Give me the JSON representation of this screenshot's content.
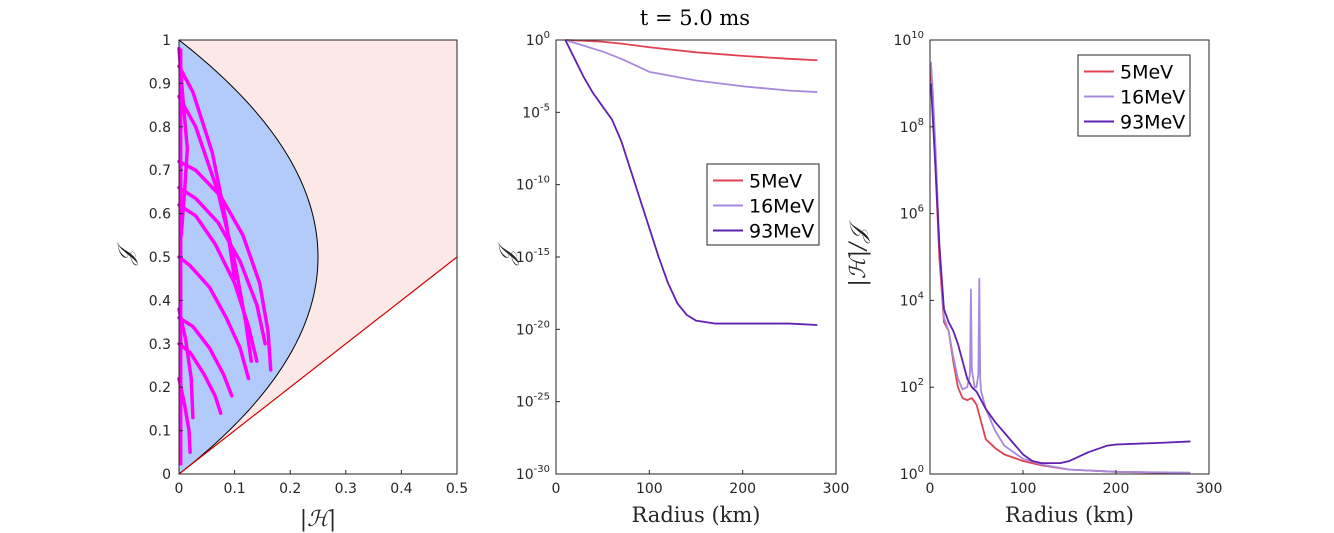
{
  "figure_title": "t = 5.0 ms",
  "colors": {
    "red_line": "#e0434f",
    "lavender_line": "#a989e0",
    "purple_line": "#6020b0",
    "magenta": "#ff00ff",
    "blue_fill": "#b2cbfa",
    "pink_fill": "#fde8e8",
    "boundary_red": "#d00000"
  },
  "chart_data": [
    {
      "type": "line",
      "panel": "left",
      "xlabel": "|ℋ|",
      "ylabel": "𝒥",
      "xlim": [
        0,
        0.5
      ],
      "ylim": [
        0,
        1
      ],
      "xticks": [
        "0",
        "0.1",
        "0.2",
        "0.3",
        "0.4",
        "0.5"
      ],
      "yticks": [
        "0",
        "0.1",
        "0.2",
        "0.3",
        "0.4",
        "0.5",
        "0.6",
        "0.7",
        "0.8",
        "0.9",
        "1"
      ],
      "regions": [
        {
          "name": "inner",
          "color": "#b2cbfa",
          "boundary": "|H| = J(1-J)"
        },
        {
          "name": "outer",
          "color": "#fde8e8",
          "boundary": "J = |H|"
        }
      ],
      "parabola_vertex": [
        0.25,
        0.5
      ],
      "diagonal_line": {
        "x": [
          0,
          0.5
        ],
        "y": [
          0,
          0.5
        ]
      },
      "trajectories": [
        {
          "x": [
            0,
            0.03,
            0.075,
            0.115,
            0.145,
            0.16,
            0.165
          ],
          "y": [
            0.72,
            0.7,
            0.64,
            0.55,
            0.44,
            0.33,
            0.24
          ]
        },
        {
          "x": [
            0,
            0.03,
            0.07,
            0.11,
            0.14,
            0.155
          ],
          "y": [
            0.66,
            0.635,
            0.58,
            0.49,
            0.39,
            0.3
          ]
        },
        {
          "x": [
            0,
            0.03,
            0.065,
            0.1,
            0.125,
            0.14
          ],
          "y": [
            0.62,
            0.595,
            0.53,
            0.44,
            0.34,
            0.26
          ]
        },
        {
          "x": [
            0,
            0.025,
            0.06,
            0.085,
            0.1
          ],
          "y": [
            0.94,
            0.88,
            0.74,
            0.58,
            0.45
          ]
        },
        {
          "x": [
            0,
            0.03,
            0.07,
            0.1,
            0.12,
            0.13
          ],
          "y": [
            0.87,
            0.8,
            0.65,
            0.49,
            0.35,
            0.26
          ]
        },
        {
          "x": [
            0,
            0.02,
            0.055,
            0.085,
            0.11,
            0.125
          ],
          "y": [
            0.5,
            0.48,
            0.43,
            0.36,
            0.29,
            0.22
          ]
        },
        {
          "x": [
            0,
            0.025,
            0.055,
            0.08,
            0.095
          ],
          "y": [
            0.36,
            0.34,
            0.29,
            0.23,
            0.18
          ]
        },
        {
          "x": [
            0,
            0.02,
            0.045,
            0.065,
            0.075
          ],
          "y": [
            0.3,
            0.28,
            0.23,
            0.18,
            0.14
          ]
        },
        {
          "x": [
            0,
            0.008,
            0.015,
            0.01,
            0.004
          ],
          "y": [
            0.98,
            0.85,
            0.75,
            0.65,
            0.55
          ]
        },
        {
          "x": [
            0,
            0.012,
            0.022,
            0.025
          ],
          "y": [
            0.38,
            0.31,
            0.22,
            0.13
          ]
        },
        {
          "x": [
            0,
            0.01,
            0.018,
            0.02
          ],
          "y": [
            0.22,
            0.16,
            0.1,
            0.05
          ]
        }
      ]
    },
    {
      "type": "line",
      "panel": "middle",
      "title": "t = 5.0 ms",
      "xlabel": "Radius (km)",
      "ylabel": "𝒥",
      "yscale": "log",
      "xlim": [
        0,
        300
      ],
      "ylim_exp": [
        -30,
        0
      ],
      "xticks": [
        "0",
        "100",
        "200",
        "300"
      ],
      "yticks": [
        "10^0",
        "10^-5",
        "10^-10",
        "10^-15",
        "10^-20",
        "10^-25",
        "10^-30"
      ],
      "legend_position": "center-right",
      "series": [
        {
          "name": "5MeV",
          "color": "#e0434f",
          "x": [
            10,
            30,
            50,
            70,
            100,
            150,
            200,
            250,
            280
          ],
          "log10y": [
            0,
            -0.05,
            -0.12,
            -0.25,
            -0.5,
            -0.85,
            -1.1,
            -1.3,
            -1.4
          ]
        },
        {
          "name": "16MeV",
          "color": "#a989e0",
          "x": [
            10,
            30,
            50,
            70,
            100,
            150,
            200,
            250,
            280
          ],
          "log10y": [
            0,
            -0.4,
            -0.8,
            -1.3,
            -2.2,
            -2.8,
            -3.2,
            -3.5,
            -3.6
          ]
        },
        {
          "name": "93MeV",
          "color": "#6020b0",
          "x": [
            10,
            20,
            30,
            40,
            50,
            60,
            70,
            80,
            90,
            100,
            110,
            120,
            130,
            140,
            150,
            170,
            200,
            250,
            280
          ],
          "log10y": [
            0,
            -1.3,
            -2.6,
            -3.7,
            -4.6,
            -5.5,
            -7.0,
            -9.0,
            -11.0,
            -13.0,
            -15.0,
            -16.8,
            -18.2,
            -19.0,
            -19.4,
            -19.6,
            -19.6,
            -19.6,
            -19.7
          ]
        }
      ]
    },
    {
      "type": "line",
      "panel": "right",
      "xlabel": "Radius (km)",
      "ylabel": "|ℋ|/𝒥",
      "yscale": "log",
      "xlim": [
        0,
        300
      ],
      "ylim_exp": [
        0,
        10
      ],
      "xticks": [
        "0",
        "100",
        "200",
        "300"
      ],
      "yticks": [
        "10^0",
        "10^2",
        "10^4",
        "10^6",
        "10^8",
        "10^10"
      ],
      "legend_position": "top-right",
      "series": [
        {
          "name": "5MeV",
          "color": "#e0434f",
          "x": [
            1,
            3,
            6,
            10,
            15,
            20,
            25,
            30,
            35,
            40,
            45,
            50,
            55,
            60,
            70,
            80,
            100,
            120,
            150,
            200,
            280
          ],
          "log10y": [
            9.3,
            8.5,
            7.0,
            5.0,
            3.5,
            3.3,
            2.6,
            2.0,
            1.75,
            1.7,
            1.75,
            1.6,
            1.2,
            0.8,
            0.6,
            0.45,
            0.3,
            0.2,
            0.1,
            0.05,
            0.02
          ]
        },
        {
          "name": "16MeV",
          "color": "#a989e0",
          "x": [
            1,
            3,
            6,
            10,
            15,
            20,
            25,
            30,
            35,
            40,
            43,
            44,
            45,
            48,
            50,
            52,
            53,
            54,
            55,
            60,
            70,
            80,
            100,
            120,
            150,
            200,
            280
          ],
          "log10y": [
            9.5,
            8.8,
            7.5,
            5.3,
            3.6,
            3.3,
            2.7,
            2.2,
            1.95,
            2.0,
            2.3,
            4.25,
            2.4,
            2.0,
            2.0,
            2.3,
            4.5,
            2.2,
            1.9,
            1.5,
            1.0,
            0.65,
            0.35,
            0.22,
            0.1,
            0.05,
            0.03
          ]
        },
        {
          "name": "93MeV",
          "color": "#6020b0",
          "x": [
            1,
            3,
            6,
            10,
            15,
            20,
            25,
            30,
            35,
            40,
            45,
            50,
            55,
            60,
            70,
            80,
            90,
            100,
            110,
            120,
            140,
            150,
            170,
            190,
            200,
            250,
            280
          ],
          "log10y": [
            9.0,
            8.2,
            7.0,
            5.3,
            3.8,
            3.5,
            3.3,
            3.0,
            2.6,
            2.2,
            2.0,
            1.9,
            1.7,
            1.5,
            1.2,
            0.95,
            0.7,
            0.45,
            0.3,
            0.25,
            0.25,
            0.3,
            0.5,
            0.65,
            0.68,
            0.72,
            0.75
          ]
        }
      ]
    }
  ]
}
